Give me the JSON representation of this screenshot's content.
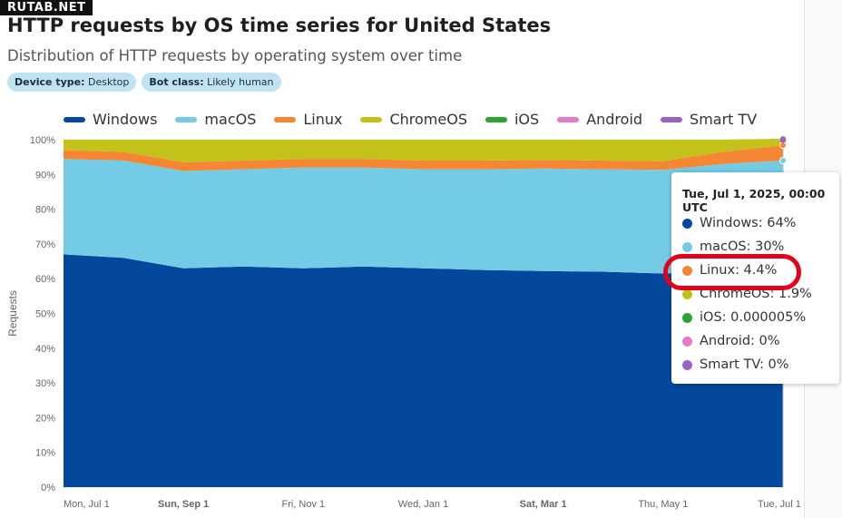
{
  "watermark": "RUTAB.NET",
  "header": {
    "title": "HTTP requests by OS time series for United States",
    "subtitle": "Distribution of HTTP requests by operating system over time"
  },
  "filters": [
    {
      "label": "Device type:",
      "value": "Desktop"
    },
    {
      "label": "Bot class:",
      "value": "Likely human"
    }
  ],
  "colors": {
    "Windows": "#03489c",
    "macOS": "#74cbe6",
    "Linux": "#f58634",
    "ChromeOS": "#c3c21a",
    "iOS": "#2ea334",
    "Android": "#e879c4",
    "Smart TV": "#9b64c4"
  },
  "tooltip": {
    "title": "Tue, Jul 1, 2025, 00:00 UTC",
    "rows": [
      {
        "name": "Windows",
        "text": "Windows: 64%"
      },
      {
        "name": "macOS",
        "text": "macOS: 30%"
      },
      {
        "name": "Linux",
        "text": "Linux: 4.4%"
      },
      {
        "name": "ChromeOS",
        "text": "ChromeOS: 1.9%"
      },
      {
        "name": "iOS",
        "text": "iOS: 0.000005%"
      },
      {
        "name": "Android",
        "text": "Android: 0%"
      },
      {
        "name": "Smart TV",
        "text": "Smart TV: 0%"
      }
    ]
  },
  "chart_data": {
    "type": "area",
    "stacked": true,
    "title": "HTTP requests by OS time series for United States",
    "ylabel": "Requests",
    "ylim": [
      0,
      100
    ],
    "yticks": [
      "0%",
      "10%",
      "20%",
      "30%",
      "40%",
      "50%",
      "60%",
      "70%",
      "80%",
      "90%",
      "100%"
    ],
    "x": [
      "2024-07-01",
      "2024-08-01",
      "2024-09-01",
      "2024-10-01",
      "2024-11-01",
      "2024-12-01",
      "2025-01-01",
      "2025-02-01",
      "2025-03-01",
      "2025-04-01",
      "2025-05-01",
      "2025-06-01",
      "2025-07-01"
    ],
    "xticks": [
      "Mon, Jul 1",
      "Sun, Sep 1",
      "Fri, Nov 1",
      "Wed, Jan 1",
      "Sat, Mar 1",
      "Thu, May 1",
      "Tue, Jul 1"
    ],
    "legend_position": "top",
    "series": [
      {
        "name": "Windows",
        "values": [
          67,
          66,
          63,
          63.5,
          63,
          63.5,
          63,
          62.5,
          62.2,
          62,
          61.5,
          62,
          64
        ]
      },
      {
        "name": "macOS",
        "values": [
          27.5,
          28,
          28,
          28,
          29,
          28.5,
          28.5,
          29,
          29.5,
          29.5,
          29.8,
          31,
          30
        ]
      },
      {
        "name": "Linux",
        "values": [
          2.5,
          2.5,
          2.5,
          2.5,
          2.5,
          2.5,
          2.5,
          2.5,
          2.5,
          2.5,
          2.5,
          3.5,
          4.4
        ]
      },
      {
        "name": "ChromeOS",
        "values": [
          3,
          3.5,
          6.5,
          6,
          5.5,
          5.5,
          6,
          6,
          5.8,
          6,
          6.2,
          3.5,
          1.9
        ]
      },
      {
        "name": "iOS",
        "values": [
          0,
          0,
          0,
          0,
          0,
          0,
          0,
          0,
          0,
          0,
          0,
          0,
          5e-06
        ]
      },
      {
        "name": "Android",
        "values": [
          0,
          0,
          0,
          0,
          0,
          0,
          0,
          0,
          0,
          0,
          0,
          0,
          0
        ]
      },
      {
        "name": "Smart TV",
        "values": [
          0,
          0,
          0,
          0,
          0,
          0,
          0,
          0,
          0,
          0,
          0,
          0,
          0
        ]
      }
    ]
  }
}
